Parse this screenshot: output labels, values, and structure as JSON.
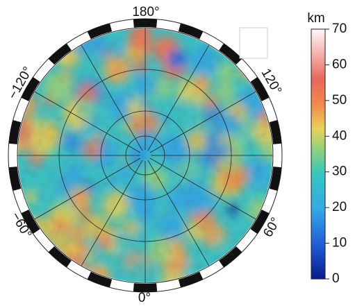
{
  "map": {
    "longitude_labels": [
      "180°",
      "120°",
      "60°",
      "0°",
      "−60°",
      "−120°"
    ]
  },
  "colorbar": {
    "unit": "km",
    "range": [
      0,
      70
    ],
    "ticks": [
      0,
      10,
      20,
      30,
      40,
      50,
      60,
      70
    ]
  }
}
